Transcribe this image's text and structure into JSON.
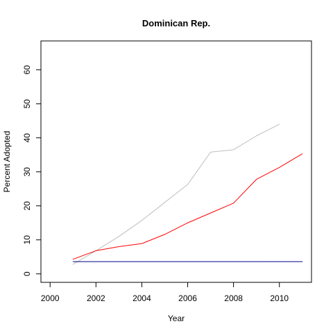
{
  "chart_data": {
    "type": "line",
    "title": "Dominican Rep.",
    "xlabel": "Year",
    "ylabel": "Percent Adopted",
    "xlim": [
      1999.6,
      2011.4
    ],
    "ylim": [
      -2.5,
      68.5
    ],
    "x_ticks": [
      2000,
      2002,
      2004,
      2006,
      2008,
      2010
    ],
    "y_ticks": [
      0,
      10,
      20,
      30,
      40,
      50,
      60
    ],
    "grid": false,
    "legend": "none",
    "series": [
      {
        "color": "#bebebe",
        "x": [
          2001,
          2002,
          2003,
          2004,
          2005,
          2006,
          2007,
          2008,
          2009,
          2010
        ],
        "y": [
          2.8,
          6.8,
          11.0,
          15.7,
          21.0,
          26.3,
          35.8,
          36.5,
          40.6,
          44.0
        ]
      },
      {
        "color": "#ff0000",
        "x": [
          2001,
          2002,
          2003,
          2004,
          2005,
          2006,
          2007,
          2008,
          2009,
          2010,
          2011
        ],
        "y": [
          4.3,
          6.8,
          8.0,
          8.9,
          11.6,
          15.0,
          17.9,
          20.8,
          27.8,
          31.3,
          35.3
        ]
      },
      {
        "color": "#00008b",
        "x": [
          2001,
          2011
        ],
        "y": [
          3.6,
          3.6
        ]
      }
    ]
  }
}
